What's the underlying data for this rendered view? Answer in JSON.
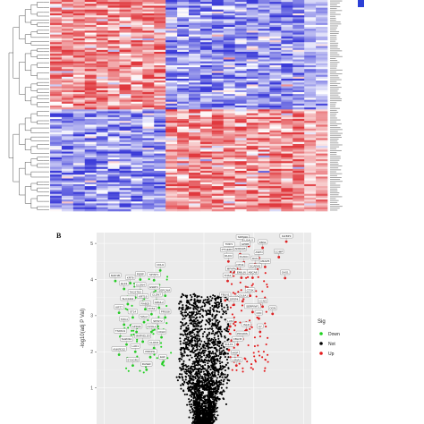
{
  "panel_b": {
    "letter": "B"
  },
  "chart_data": [
    {
      "type": "heatmap",
      "rows": 110,
      "columns": 24,
      "row_groups": [
        {
          "rows_from": 0,
          "rows_to": 57,
          "pattern": "columns 1-10 high (red), columns 11-24 low (blue)"
        },
        {
          "rows_from": 57,
          "rows_to": 110,
          "pattern": "columns 1-10 low (blue), columns 11-24 high (red)"
        }
      ],
      "colors": {
        "low": "#3b3bd8",
        "mid": "#ffffff",
        "high": "#e0393e"
      },
      "scale_bar_color": "#2b3fd6",
      "dendrogram": true,
      "row_labels_legible": false
    },
    {
      "type": "scatter",
      "subtype": "volcano",
      "ylabel": "-log10(adj P Val)",
      "y_ticks": [
        "1",
        "2",
        "3",
        "4",
        "5"
      ],
      "ylim": [
        0,
        5.3
      ],
      "xlim": [
        -4.3,
        4.3
      ],
      "grid": true,
      "background": "#ebebeb",
      "legend": {
        "title": "Sig",
        "placement": "right",
        "entries": [
          {
            "label": "Down",
            "color": "#1fd11f"
          },
          {
            "label": "Not",
            "color": "#000000"
          },
          {
            "label": "Up",
            "color": "#e41a1c"
          }
        ]
      },
      "up_labeled": [
        {
          "gene": "SMIM10",
          "x": 1.55,
          "y": 5.02
        },
        {
          "gene": "LGALS",
          "x": 1.8,
          "y": 4.93
        },
        {
          "gene": "IGFBP3",
          "x": 3.3,
          "y": 5.05
        },
        {
          "gene": "TRIP1",
          "x": 1.0,
          "y": 4.82
        },
        {
          "gene": "GPRB",
          "x": 1.65,
          "y": 4.83
        },
        {
          "gene": "FBN1",
          "x": 2.35,
          "y": 4.88
        },
        {
          "gene": "PTGER3",
          "x": 0.92,
          "y": 4.67
        },
        {
          "gene": "ADRA1B",
          "x": 1.45,
          "y": 4.7
        },
        {
          "gene": "ASPN",
          "x": 2.2,
          "y": 4.6
        },
        {
          "gene": "COMP",
          "x": 3.0,
          "y": 4.62
        },
        {
          "gene": "RHOJ",
          "x": 0.98,
          "y": 4.5
        },
        {
          "gene": "PLXDC",
          "x": 1.6,
          "y": 4.48
        },
        {
          "gene": "DCN",
          "x": 2.05,
          "y": 4.43
        },
        {
          "gene": "MFAP5",
          "x": 2.45,
          "y": 4.35
        },
        {
          "gene": "NTN4",
          "x": 1.45,
          "y": 4.26
        },
        {
          "gene": "SCARA5",
          "x": 2.05,
          "y": 4.22
        },
        {
          "gene": "MFAP4",
          "x": 1.1,
          "y": 4.14
        },
        {
          "gene": "GAS1",
          "x": 3.25,
          "y": 4.04
        },
        {
          "gene": "EMILIN",
          "x": 1.5,
          "y": 4.05
        },
        {
          "gene": "ABCA8",
          "x": 1.95,
          "y": 4.05
        },
        {
          "gene": "TNS1",
          "x": 0.95,
          "y": 3.96
        },
        {
          "gene": "CTSK",
          "x": 1.85,
          "y": 3.55
        },
        {
          "gene": "FBLN1",
          "x": 0.85,
          "y": 3.42
        },
        {
          "gene": "COL8A1",
          "x": 1.55,
          "y": 3.4
        },
        {
          "gene": "CCN3",
          "x": 2.35,
          "y": 3.25
        },
        {
          "gene": "SFRP4",
          "x": 1.2,
          "y": 3.3
        },
        {
          "gene": "SERPINF1",
          "x": 1.95,
          "y": 3.1
        },
        {
          "gene": "CFD",
          "x": 2.2,
          "y": 2.92
        },
        {
          "gene": "OGN",
          "x": 2.75,
          "y": 3.05
        },
        {
          "gene": "ISLR",
          "x": 1.7,
          "y": 2.6
        },
        {
          "gene": "LUM",
          "x": 1.05,
          "y": 2.7
        },
        {
          "gene": "C7",
          "x": 2.25,
          "y": 2.55
        },
        {
          "gene": "PDGFRL",
          "x": 1.55,
          "y": 2.35
        },
        {
          "gene": "SULF1",
          "x": 1.0,
          "y": 2.05
        },
        {
          "gene": "LAMA2",
          "x": 1.3,
          "y": 1.62
        },
        {
          "gene": "FBLN5",
          "x": 1.35,
          "y": 2.2
        },
        {
          "gene": "MGP",
          "x": 1.25,
          "y": 1.82
        }
      ],
      "down_labeled": [
        {
          "gene": "CDH1",
          "x": -1.75,
          "y": 4.25
        },
        {
          "gene": "MAP1B",
          "x": -3.55,
          "y": 3.96
        },
        {
          "gene": "PERP",
          "x": -2.55,
          "y": 4.0
        },
        {
          "gene": "SPINT1",
          "x": -2.0,
          "y": 3.98
        },
        {
          "gene": "KRT8",
          "x": -2.95,
          "y": 3.9
        },
        {
          "gene": "ELF3",
          "x": -3.2,
          "y": 3.74
        },
        {
          "gene": "CLDN4",
          "x": -2.55,
          "y": 3.7
        },
        {
          "gene": "ESRP1",
          "x": -2.0,
          "y": 3.64
        },
        {
          "gene": "EPCAM",
          "x": -1.55,
          "y": 3.55
        },
        {
          "gene": "TACSTD2",
          "x": -2.75,
          "y": 3.5
        },
        {
          "gene": "CLDN7",
          "x": -1.9,
          "y": 3.42
        },
        {
          "gene": "KRT19",
          "x": -2.45,
          "y": 3.38
        },
        {
          "gene": "SLC44A4",
          "x": -3.05,
          "y": 3.32
        },
        {
          "gene": "GRHL2",
          "x": -1.8,
          "y": 3.22
        },
        {
          "gene": "RAB25",
          "x": -2.35,
          "y": 3.18
        },
        {
          "gene": "KRT7",
          "x": -3.4,
          "y": 3.08
        },
        {
          "gene": "CDS1",
          "x": -2.1,
          "y": 3.04
        },
        {
          "gene": "ST14",
          "x": -2.85,
          "y": 2.95
        },
        {
          "gene": "PRSS8",
          "x": -1.55,
          "y": 2.95
        },
        {
          "gene": "MAL2",
          "x": -2.4,
          "y": 2.82
        },
        {
          "gene": "TMC4",
          "x": -3.2,
          "y": 2.75
        },
        {
          "gene": "SPINT2",
          "x": -1.85,
          "y": 2.7
        },
        {
          "gene": "AP1M2",
          "x": -2.7,
          "y": 2.55
        },
        {
          "gene": "OVOL1",
          "x": -2.1,
          "y": 2.55
        },
        {
          "gene": "TSPAN1",
          "x": -3.35,
          "y": 2.42
        },
        {
          "gene": "CDH3",
          "x": -1.7,
          "y": 2.4
        },
        {
          "gene": "MARVELD3",
          "x": -2.45,
          "y": 2.28
        },
        {
          "gene": "SH2D3A",
          "x": -3.1,
          "y": 2.2
        },
        {
          "gene": "CLDN3",
          "x": -2.0,
          "y": 2.1
        },
        {
          "gene": "LAD1",
          "x": -2.75,
          "y": 2.0
        },
        {
          "gene": "ANKRD22",
          "x": -3.4,
          "y": 1.92
        },
        {
          "gene": "PRR15L",
          "x": -2.15,
          "y": 1.85
        },
        {
          "gene": "EHF",
          "x": -1.65,
          "y": 1.7
        },
        {
          "gene": "SYNGR2",
          "x": -2.85,
          "y": 1.62
        },
        {
          "gene": "RASEF",
          "x": -2.3,
          "y": 1.5
        }
      ]
    }
  ]
}
